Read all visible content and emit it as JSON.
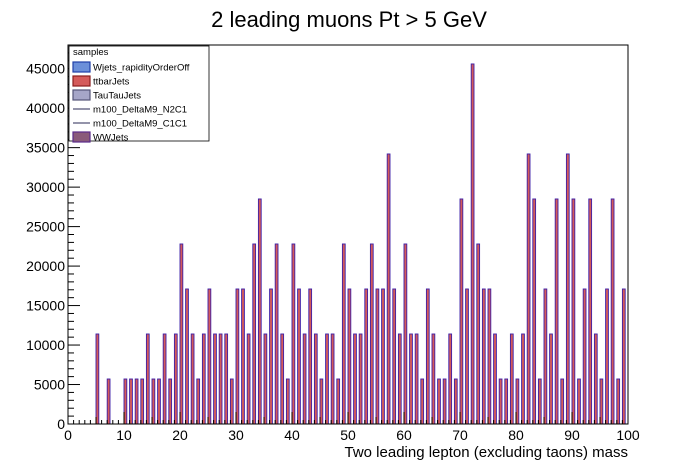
{
  "chart_data": {
    "type": "bar",
    "title": "2 leading muons Pt > 5 GeV",
    "xlabel": "Two leading lepton (excluding taons) mass",
    "ylabel": "",
    "xlim": [
      0,
      100
    ],
    "ylim": [
      0,
      48000
    ],
    "bin_width": 0.5,
    "xticks": [
      0,
      10,
      20,
      30,
      40,
      50,
      60,
      70,
      80,
      90,
      100
    ],
    "yticks": [
      0,
      5000,
      10000,
      15000,
      20000,
      25000,
      30000,
      35000,
      40000,
      45000
    ],
    "grid": false,
    "legend": {
      "title": "samples",
      "placement": "top-left",
      "entries": [
        {
          "name": "Wjets_rapidityOrderOff",
          "style": "fill",
          "fill": "#6b8fd9",
          "line": "#1f3fa8"
        },
        {
          "name": "ttbarJets",
          "style": "fill",
          "fill": "#d45a5a",
          "line": "#8a1e1e"
        },
        {
          "name": "TauTauJets",
          "style": "fill",
          "fill": "#a6a6c8",
          "line": "#555577"
        },
        {
          "name": "m100_DeltaM9_N2C1",
          "style": "line",
          "line": "#2a2a55"
        },
        {
          "name": "m100_DeltaM9_C1C1",
          "style": "line",
          "line": "#2a2a55"
        },
        {
          "name": "WWJets",
          "style": "fill",
          "fill": "#8a5a7a",
          "line": "#5a2a8a"
        }
      ]
    },
    "series": [
      {
        "name": "ttbarJets",
        "color": "#d45a5a",
        "edge_color": "#3c1fa8",
        "bins": [
          [
            5,
            11400
          ],
          [
            7,
            5700
          ],
          [
            10,
            5700
          ],
          [
            11,
            5700
          ],
          [
            12,
            5700
          ],
          [
            13,
            5700
          ],
          [
            14,
            11400
          ],
          [
            15,
            5700
          ],
          [
            16,
            5700
          ],
          [
            17,
            11400
          ],
          [
            18,
            5700
          ],
          [
            19,
            11400
          ],
          [
            20,
            22800
          ],
          [
            21,
            17100
          ],
          [
            22,
            11400
          ],
          [
            23,
            5700
          ],
          [
            24,
            11400
          ],
          [
            25,
            17100
          ],
          [
            26,
            11400
          ],
          [
            27,
            11400
          ],
          [
            28,
            11400
          ],
          [
            29,
            5700
          ],
          [
            30,
            17100
          ],
          [
            31,
            17100
          ],
          [
            32,
            11400
          ],
          [
            33,
            22800
          ],
          [
            34,
            28500
          ],
          [
            35,
            11400
          ],
          [
            36,
            17100
          ],
          [
            37,
            22800
          ],
          [
            38,
            11400
          ],
          [
            39,
            5700
          ],
          [
            40,
            22800
          ],
          [
            41,
            17100
          ],
          [
            42,
            11400
          ],
          [
            43,
            17100
          ],
          [
            44,
            11400
          ],
          [
            45,
            5700
          ],
          [
            46,
            11400
          ],
          [
            47,
            11400
          ],
          [
            48,
            5700
          ],
          [
            49,
            22800
          ],
          [
            50,
            17100
          ],
          [
            51,
            11400
          ],
          [
            52,
            11400
          ],
          [
            53,
            17100
          ],
          [
            54,
            22800
          ],
          [
            55,
            17100
          ],
          [
            56,
            17100
          ],
          [
            57,
            34200
          ],
          [
            58,
            17100
          ],
          [
            59,
            11400
          ],
          [
            60,
            22800
          ],
          [
            61,
            11400
          ],
          [
            62,
            11400
          ],
          [
            63,
            5700
          ],
          [
            64,
            17100
          ],
          [
            65,
            11400
          ],
          [
            66,
            5700
          ],
          [
            67,
            5700
          ],
          [
            68,
            11400
          ],
          [
            69,
            5700
          ],
          [
            70,
            28500
          ],
          [
            71,
            17100
          ],
          [
            72,
            45600
          ],
          [
            73,
            22800
          ],
          [
            74,
            17100
          ],
          [
            75,
            17100
          ],
          [
            76,
            11400
          ],
          [
            77,
            5700
          ],
          [
            78,
            5700
          ],
          [
            79,
            11400
          ],
          [
            80,
            5700
          ],
          [
            81,
            11400
          ],
          [
            82,
            34200
          ],
          [
            83,
            28500
          ],
          [
            84,
            5700
          ],
          [
            85,
            17100
          ],
          [
            86,
            11400
          ],
          [
            87,
            28500
          ],
          [
            88,
            5700
          ],
          [
            89,
            34200
          ],
          [
            90,
            28500
          ],
          [
            91,
            5700
          ],
          [
            92,
            17100
          ],
          [
            93,
            28500
          ],
          [
            94,
            11400
          ],
          [
            95,
            5700
          ],
          [
            96,
            17100
          ],
          [
            97,
            28500
          ],
          [
            98,
            5700
          ],
          [
            99,
            17100
          ]
        ]
      }
    ]
  }
}
